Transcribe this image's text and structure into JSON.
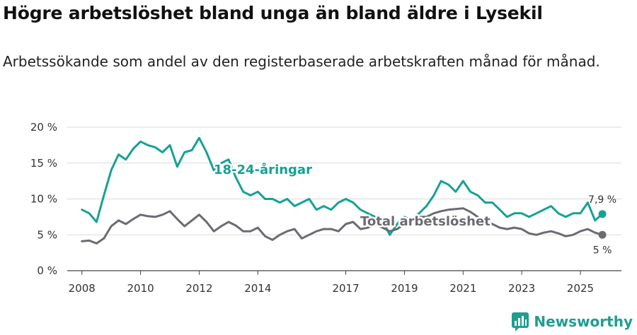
{
  "title": "Högre arbetslöshet bland unga än bland äldre i Lysekil",
  "subtitle": "Arbetssökande som andel av den registerbaserade arbetskraften månad för månad.",
  "logo_text": "Newsworthy",
  "colors": {
    "youth": "#16a196",
    "total": "#6b6b73",
    "grid": "#d9d9d9",
    "axis": "#444444",
    "brand": "#1f9e8e"
  },
  "chart_data": {
    "type": "line",
    "ylim": [
      0,
      20
    ],
    "xlim": [
      2007.5,
      2026.4
    ],
    "y_ticks": [
      0,
      5,
      10,
      15,
      20
    ],
    "y_tick_labels": [
      "0 %",
      "5 %",
      "10 %",
      "15 %",
      "20 %"
    ],
    "x_ticks": [
      2008,
      2010,
      2012,
      2014,
      2017,
      2019,
      2021,
      2023,
      2025
    ],
    "x_tick_labels": [
      "2008",
      "2010",
      "2012",
      "2014",
      "2017",
      "2019",
      "2021",
      "2023",
      "2025"
    ],
    "series": [
      {
        "name": "18-24-åringar",
        "label": "18-24-åringar",
        "end_label": "7,9 %",
        "x": [
          2008.0,
          2008.25,
          2008.5,
          2008.75,
          2009.0,
          2009.25,
          2009.5,
          2009.75,
          2010.0,
          2010.25,
          2010.5,
          2010.75,
          2011.0,
          2011.25,
          2011.5,
          2011.75,
          2012.0,
          2012.25,
          2012.5,
          2012.75,
          2013.0,
          2013.25,
          2013.5,
          2013.75,
          2014.0,
          2014.25,
          2014.5,
          2014.75,
          2015.0,
          2015.25,
          2015.5,
          2015.75,
          2016.0,
          2016.25,
          2016.5,
          2016.75,
          2017.0,
          2017.25,
          2017.5,
          2017.75,
          2018.0,
          2018.25,
          2018.5,
          2018.75,
          2019.0,
          2019.25,
          2019.5,
          2019.75,
          2020.0,
          2020.25,
          2020.5,
          2020.75,
          2021.0,
          2021.25,
          2021.5,
          2021.75,
          2022.0,
          2022.25,
          2022.5,
          2022.75,
          2023.0,
          2023.25,
          2023.5,
          2023.75,
          2024.0,
          2024.25,
          2024.5,
          2024.75,
          2025.0,
          2025.25,
          2025.5,
          2025.75
        ],
        "values": [
          8.5,
          8.0,
          6.8,
          10.5,
          14.0,
          16.2,
          15.5,
          17.0,
          18.0,
          17.5,
          17.2,
          16.5,
          17.5,
          14.5,
          16.5,
          16.8,
          18.5,
          16.5,
          14.0,
          15.0,
          15.5,
          13.0,
          11.0,
          10.5,
          11.0,
          10.0,
          10.0,
          9.5,
          10.0,
          9.0,
          9.5,
          10.0,
          8.5,
          9.0,
          8.5,
          9.5,
          10.0,
          9.5,
          8.5,
          8.0,
          7.5,
          7.0,
          5.0,
          6.5,
          7.5,
          7.0,
          8.0,
          9.0,
          10.5,
          12.5,
          12.0,
          11.0,
          12.5,
          11.0,
          10.5,
          9.5,
          9.5,
          8.5,
          7.5,
          8.0,
          8.0,
          7.5,
          8.0,
          8.5,
          9.0,
          8.0,
          7.5,
          8.0,
          8.0,
          9.5,
          7.0,
          7.9
        ]
      },
      {
        "name": "Total arbetslöshet",
        "label": "Total arbetslöshet",
        "end_label": "5 %",
        "x": [
          2008.0,
          2008.25,
          2008.5,
          2008.75,
          2009.0,
          2009.25,
          2009.5,
          2009.75,
          2010.0,
          2010.25,
          2010.5,
          2010.75,
          2011.0,
          2011.25,
          2011.5,
          2011.75,
          2012.0,
          2012.25,
          2012.5,
          2012.75,
          2013.0,
          2013.25,
          2013.5,
          2013.75,
          2014.0,
          2014.25,
          2014.5,
          2014.75,
          2015.0,
          2015.25,
          2015.5,
          2015.75,
          2016.0,
          2016.25,
          2016.5,
          2016.75,
          2017.0,
          2017.25,
          2017.5,
          2017.75,
          2018.0,
          2018.25,
          2018.5,
          2018.75,
          2019.0,
          2019.25,
          2019.5,
          2019.75,
          2020.0,
          2020.25,
          2020.5,
          2020.75,
          2021.0,
          2021.25,
          2021.5,
          2021.75,
          2022.0,
          2022.25,
          2022.5,
          2022.75,
          2023.0,
          2023.25,
          2023.5,
          2023.75,
          2024.0,
          2024.25,
          2024.5,
          2024.75,
          2025.0,
          2025.25,
          2025.5,
          2025.75
        ],
        "values": [
          4.1,
          4.2,
          3.8,
          4.5,
          6.2,
          7.0,
          6.5,
          7.2,
          7.8,
          7.6,
          7.5,
          7.8,
          8.3,
          7.2,
          6.2,
          7.0,
          7.8,
          6.8,
          5.5,
          6.2,
          6.8,
          6.3,
          5.5,
          5.5,
          6.0,
          4.8,
          4.3,
          5.0,
          5.5,
          5.8,
          4.5,
          5.0,
          5.5,
          5.8,
          5.8,
          5.5,
          6.5,
          6.8,
          5.8,
          6.0,
          6.5,
          6.0,
          5.5,
          5.8,
          6.5,
          7.0,
          7.5,
          7.5,
          8.0,
          8.3,
          8.5,
          8.6,
          8.7,
          8.2,
          7.5,
          6.8,
          6.5,
          6.0,
          5.8,
          6.0,
          5.8,
          5.2,
          5.0,
          5.3,
          5.5,
          5.2,
          4.8,
          5.0,
          5.5,
          5.8,
          5.3,
          5.0
        ]
      }
    ]
  }
}
